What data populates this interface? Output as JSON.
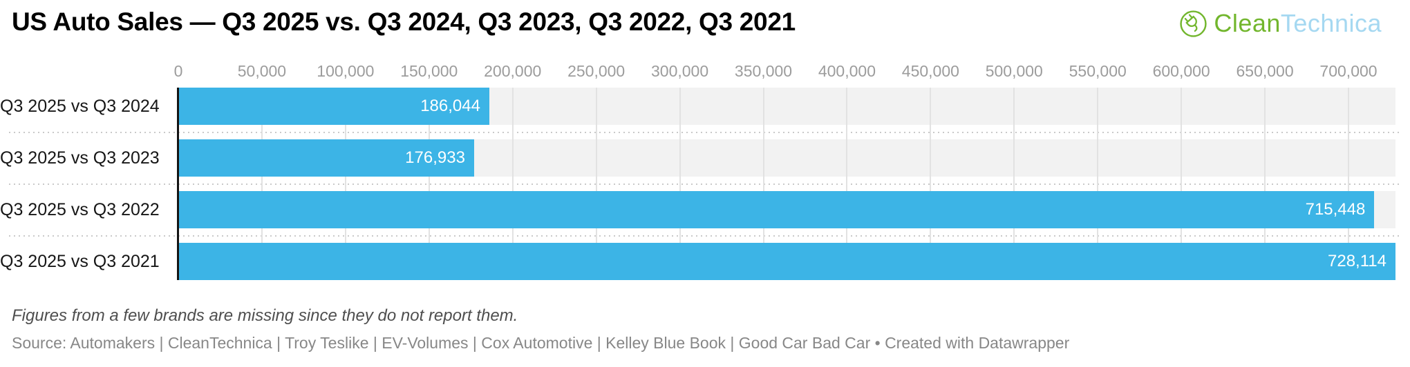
{
  "header": {
    "title": "US Auto Sales — Q3 2025 vs. Q3 2024, Q3 2023, Q3 2022, Q3 2021",
    "logo": {
      "text_primary": "Clean",
      "text_secondary": "Technica",
      "icon": "plug-in-circle-icon",
      "color_green": "#72b62d",
      "color_blue": "#a5d8f1"
    }
  },
  "chart_data": {
    "type": "bar",
    "orientation": "horizontal",
    "title": "US Auto Sales — Q3 2025 vs. Q3 2024, Q3 2023, Q3 2022, Q3 2021",
    "categories": [
      "Q3 2025 vs Q3 2024",
      "Q3 2025 vs Q3 2023",
      "Q3 2025 vs Q3 2022",
      "Q3 2025 vs Q3 2021"
    ],
    "values": [
      186044,
      176933,
      715448,
      728114
    ],
    "value_labels": [
      "186,044",
      "176,933",
      "715,448",
      "728,114"
    ],
    "xlim": [
      0,
      728114
    ],
    "x_ticks": [
      0,
      50000,
      100000,
      150000,
      200000,
      250000,
      300000,
      350000,
      400000,
      450000,
      500000,
      550000,
      600000,
      650000,
      700000
    ],
    "x_tick_labels": [
      "0",
      "50,000",
      "100,000",
      "150,000",
      "200,000",
      "250,000",
      "300,000",
      "350,000",
      "400,000",
      "450,000",
      "500,000",
      "550,000",
      "600,000",
      "650,000",
      "700,000"
    ],
    "grid": "vertical gridlines every 50,000",
    "legend": "none",
    "bar_color": "#3cb4e6",
    "track_color": "#f2f2f2",
    "value_label_color": "#ffffff",
    "value_label_position": "inside-end"
  },
  "footer": {
    "note": "Figures from a few brands are missing since they do not report them.",
    "source": "Source: Automakers | CleanTechnica | Troy Teslike | EV-Volumes | Cox Automotive | Kelley Blue Book | Good Car Bad Car • Created with Datawrapper"
  }
}
